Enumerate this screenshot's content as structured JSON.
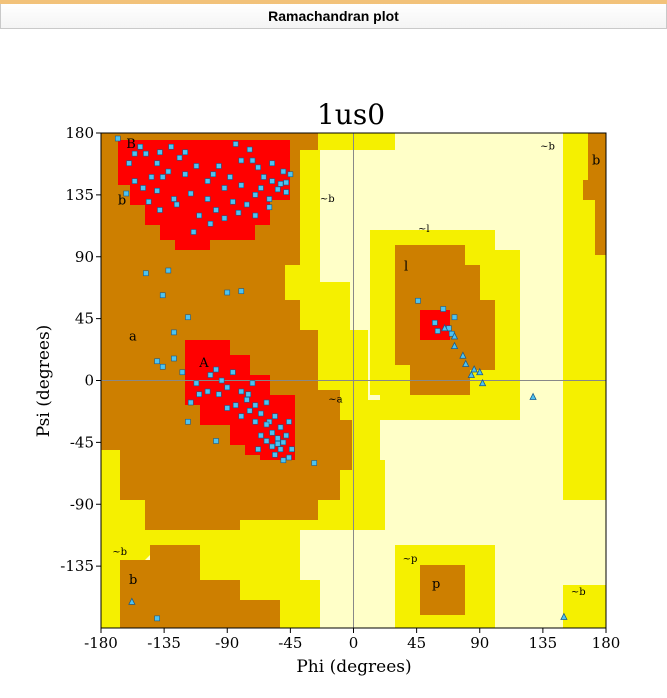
{
  "header": {
    "title": "Ramachandran plot"
  },
  "colors": {
    "core": "#ff0000",
    "allowed": "#cd7f00",
    "generous": "#f5f000",
    "outer": "#ffffc8",
    "point_fill": "#4ec3f0",
    "point_stroke": "#1a5a8a"
  },
  "chart_data": {
    "type": "scatter",
    "title": "1us0",
    "xlabel": "Phi (degrees)",
    "ylabel": "Psi (degrees)",
    "xlim": [
      -180,
      180
    ],
    "ylim": [
      -180,
      180
    ],
    "xticks": [
      -180,
      -135,
      -90,
      -45,
      0,
      45,
      90,
      135,
      180
    ],
    "yticks": [
      180,
      135,
      90,
      45,
      0,
      -45,
      -90,
      -135
    ],
    "grid": "zero-lines",
    "region_labels": [
      {
        "text": "B",
        "x": -162,
        "y": 169
      },
      {
        "text": "b",
        "x": -168,
        "y": 128
      },
      {
        "text": "~b",
        "x": -24,
        "y": 130
      },
      {
        "text": "a",
        "x": -160,
        "y": 29
      },
      {
        "text": "A",
        "x": -110,
        "y": 10
      },
      {
        "text": "~a",
        "x": -18,
        "y": -16
      },
      {
        "text": "~l",
        "x": 46,
        "y": 108
      },
      {
        "text": "l",
        "x": 36,
        "y": 80
      },
      {
        "text": "~b",
        "x": 133,
        "y": 168
      },
      {
        "text": "b",
        "x": 170,
        "y": 157
      },
      {
        "text": "~b",
        "x": -172,
        "y": -127
      },
      {
        "text": "b",
        "x": -160,
        "y": -148
      },
      {
        "text": "~p",
        "x": 35,
        "y": -132
      },
      {
        "text": "p",
        "x": 56,
        "y": -151
      },
      {
        "text": "~b",
        "x": 155,
        "y": -156
      }
    ],
    "squares": [
      [
        -168,
        176
      ],
      [
        -148,
        165
      ],
      [
        -160,
        158
      ],
      [
        -138,
        166
      ],
      [
        -130,
        170
      ],
      [
        -152,
        170
      ],
      [
        -124,
        162
      ],
      [
        -112,
        156
      ],
      [
        -96,
        156
      ],
      [
        -80,
        160
      ],
      [
        -74,
        168
      ],
      [
        -68,
        155
      ],
      [
        -58,
        158
      ],
      [
        -50,
        152
      ],
      [
        -45,
        150
      ],
      [
        -52,
        143
      ],
      [
        -64,
        148
      ],
      [
        -88,
        148
      ],
      [
        -104,
        145
      ],
      [
        -120,
        150
      ],
      [
        -132,
        152
      ],
      [
        -144,
        148
      ],
      [
        -156,
        145
      ],
      [
        -162,
        136
      ],
      [
        -150,
        140
      ],
      [
        -140,
        138
      ],
      [
        -128,
        132
      ],
      [
        -116,
        136
      ],
      [
        -104,
        132
      ],
      [
        -92,
        140
      ],
      [
        -80,
        142
      ],
      [
        -70,
        135
      ],
      [
        -60,
        132
      ],
      [
        -54,
        139
      ],
      [
        -48,
        137
      ],
      [
        -66,
        140
      ],
      [
        -76,
        128
      ],
      [
        -86,
        130
      ],
      [
        -98,
        124
      ],
      [
        -110,
        120
      ],
      [
        -126,
        128
      ],
      [
        -138,
        124
      ],
      [
        -146,
        130
      ],
      [
        -114,
        108
      ],
      [
        -102,
        114
      ],
      [
        -92,
        118
      ],
      [
        -82,
        122
      ],
      [
        -70,
        120
      ],
      [
        -60,
        126
      ],
      [
        -100,
        150
      ],
      [
        -140,
        158
      ],
      [
        -156,
        165
      ],
      [
        -120,
        166
      ],
      [
        -84,
        172
      ],
      [
        -72,
        160
      ],
      [
        -136,
        148
      ],
      [
        -58,
        145
      ],
      [
        -48,
        144
      ],
      [
        -148,
        78
      ],
      [
        -132,
        80
      ],
      [
        -136,
        62
      ],
      [
        -90,
        64
      ],
      [
        -80,
        65
      ],
      [
        -128,
        16
      ],
      [
        -136,
        10
      ],
      [
        -140,
        14
      ],
      [
        -122,
        6
      ],
      [
        -112,
        -2
      ],
      [
        -110,
        -10
      ],
      [
        -102,
        4
      ],
      [
        -98,
        8
      ],
      [
        -94,
        0
      ],
      [
        -90,
        -5
      ],
      [
        -86,
        6
      ],
      [
        -80,
        -8
      ],
      [
        -76,
        -14
      ],
      [
        -72,
        -2
      ],
      [
        -70,
        -18
      ],
      [
        -66,
        -24
      ],
      [
        -62,
        -16
      ],
      [
        -60,
        -30
      ],
      [
        -58,
        -38
      ],
      [
        -56,
        -26
      ],
      [
        -54,
        -42
      ],
      [
        -52,
        -34
      ],
      [
        -50,
        -45
      ],
      [
        -48,
        -40
      ],
      [
        -46,
        -30
      ],
      [
        -44,
        -50
      ],
      [
        -66,
        -40
      ],
      [
        -62,
        -44
      ],
      [
        -58,
        -48
      ],
      [
        -56,
        -54
      ],
      [
        -52,
        -50
      ],
      [
        -50,
        -58
      ],
      [
        -62,
        -32
      ],
      [
        -70,
        -30
      ],
      [
        -74,
        -22
      ],
      [
        -80,
        -26
      ],
      [
        -84,
        -18
      ],
      [
        -90,
        -20
      ],
      [
        -96,
        -10
      ],
      [
        -104,
        -8
      ],
      [
        -116,
        -16
      ],
      [
        -118,
        -30
      ],
      [
        -98,
        -44
      ],
      [
        -68,
        -50
      ],
      [
        -54,
        -46
      ],
      [
        -46,
        -56
      ],
      [
        -28,
        -60
      ],
      [
        -128,
        35
      ],
      [
        -118,
        46
      ],
      [
        -75,
        -10
      ],
      [
        -140,
        -173
      ],
      [
        64,
        52
      ],
      [
        68,
        38
      ],
      [
        70,
        34
      ],
      [
        58,
        42
      ],
      [
        72,
        46
      ],
      [
        60,
        36
      ],
      [
        46,
        58
      ]
    ],
    "triangles": [
      [
        -158,
        -161
      ],
      [
        65,
        38
      ],
      [
        72,
        25
      ],
      [
        78,
        18
      ],
      [
        80,
        12
      ],
      [
        84,
        4
      ],
      [
        86,
        8
      ],
      [
        90,
        6
      ],
      [
        92,
        -2
      ],
      [
        72,
        32
      ],
      [
        128,
        -12
      ],
      [
        150,
        -172
      ]
    ]
  }
}
